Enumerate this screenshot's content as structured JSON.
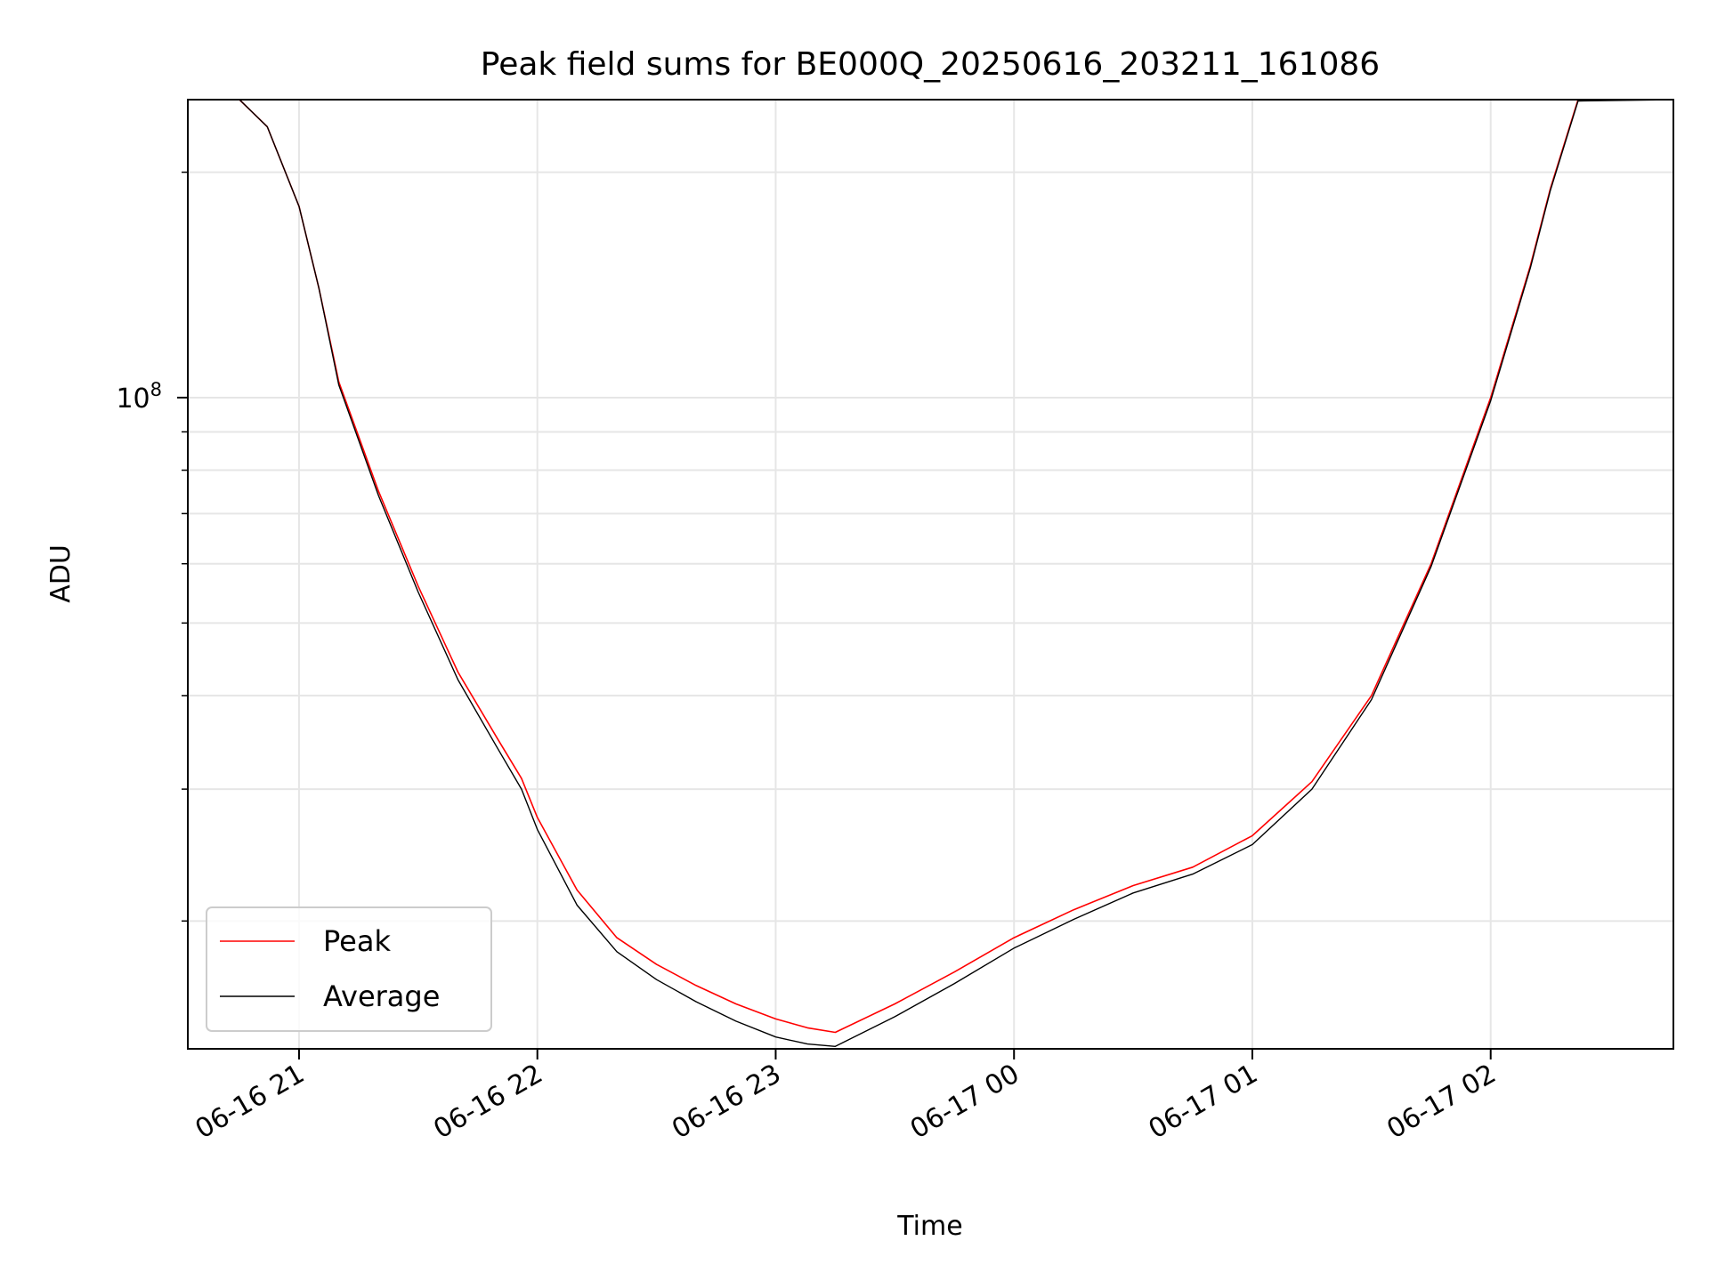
{
  "chart_data": {
    "type": "line",
    "title": "Peak field sums for BE000Q_20250616_203211_161086",
    "xlabel": "Time",
    "ylabel": "ADU",
    "yscale": "log",
    "grid": true,
    "legend_position": "lower-left",
    "xlim": [
      "2025-06-16 20:32",
      "2025-06-17 02:46"
    ],
    "ylim": [
      13500000,
      250000000
    ],
    "x_ticks": [
      {
        "value": "2025-06-16 21:00",
        "label": "06-16 21"
      },
      {
        "value": "2025-06-16 22:00",
        "label": "06-16 22"
      },
      {
        "value": "2025-06-16 23:00",
        "label": "06-16 23"
      },
      {
        "value": "2025-06-17 00:00",
        "label": "06-17 00"
      },
      {
        "value": "2025-06-17 01:00",
        "label": "06-17 01"
      },
      {
        "value": "2025-06-17 02:00",
        "label": "06-17 02"
      }
    ],
    "y_ticks": [
      {
        "value": 100000000,
        "base": "10",
        "exp": "8"
      }
    ],
    "y_minor_ticks": [
      20000000,
      30000000,
      40000000,
      50000000,
      60000000,
      70000000,
      80000000,
      90000000,
      200000000
    ],
    "series": [
      {
        "name": "Peak",
        "color": "#ff0000",
        "x": [
          "2025-06-16 20:32",
          "2025-06-16 20:45",
          "2025-06-16 20:52",
          "2025-06-16 21:00",
          "2025-06-16 21:05",
          "2025-06-16 21:10",
          "2025-06-16 21:20",
          "2025-06-16 21:30",
          "2025-06-16 21:40",
          "2025-06-16 21:50",
          "2025-06-16 21:56",
          "2025-06-16 22:00",
          "2025-06-16 22:10",
          "2025-06-16 22:20",
          "2025-06-16 22:30",
          "2025-06-16 22:40",
          "2025-06-16 22:50",
          "2025-06-16 23:00",
          "2025-06-16 23:08",
          "2025-06-16 23:15",
          "2025-06-16 23:30",
          "2025-06-16 23:45",
          "2025-06-17 00:00",
          "2025-06-17 00:15",
          "2025-06-17 00:30",
          "2025-06-17 00:45",
          "2025-06-17 01:00",
          "2025-06-17 01:15",
          "2025-06-17 01:30",
          "2025-06-17 01:45",
          "2025-06-17 02:00",
          "2025-06-17 02:10",
          "2025-06-17 02:15",
          "2025-06-17 02:22",
          "2025-06-17 02:46"
        ],
        "values": [
          250000000,
          250000000,
          230000000,
          180000000,
          140000000,
          105000000,
          75000000,
          56000000,
          43000000,
          35000000,
          31000000,
          27500000,
          22000000,
          19000000,
          17500000,
          16400000,
          15500000,
          14800000,
          14400000,
          14200000,
          15500000,
          17100000,
          19000000,
          20700000,
          22300000,
          23600000,
          26000000,
          30700000,
          40000000,
          60000000,
          100000000,
          150000000,
          190000000,
          250000000,
          250000000
        ]
      },
      {
        "name": "Average",
        "color": "#000000",
        "x": [
          "2025-06-16 20:32",
          "2025-06-16 20:45",
          "2025-06-16 20:52",
          "2025-06-16 21:00",
          "2025-06-16 21:05",
          "2025-06-16 21:10",
          "2025-06-16 21:20",
          "2025-06-16 21:30",
          "2025-06-16 21:40",
          "2025-06-16 21:50",
          "2025-06-16 21:56",
          "2025-06-16 22:00",
          "2025-06-16 22:10",
          "2025-06-16 22:20",
          "2025-06-16 22:30",
          "2025-06-16 22:40",
          "2025-06-16 22:50",
          "2025-06-16 23:00",
          "2025-06-16 23:08",
          "2025-06-16 23:15",
          "2025-06-16 23:30",
          "2025-06-16 23:45",
          "2025-06-17 00:00",
          "2025-06-17 00:15",
          "2025-06-17 00:30",
          "2025-06-17 00:45",
          "2025-06-17 01:00",
          "2025-06-17 01:15",
          "2025-06-17 01:30",
          "2025-06-17 01:45",
          "2025-06-17 02:00",
          "2025-06-17 02:10",
          "2025-06-17 02:15",
          "2025-06-17 02:22",
          "2025-06-17 02:46"
        ],
        "values": [
          250000000,
          250000000,
          230000000,
          180000000,
          140000000,
          104000000,
          74000000,
          55000000,
          42000000,
          34000000,
          30000000,
          26500000,
          21000000,
          18200000,
          16700000,
          15600000,
          14700000,
          14000000,
          13700000,
          13600000,
          14900000,
          16500000,
          18400000,
          20100000,
          21800000,
          23100000,
          25300000,
          30000000,
          39500000,
          59500000,
          99000000,
          149000000,
          189000000,
          249000000,
          250000000
        ]
      }
    ],
    "legend": {
      "entries": [
        {
          "label": "Peak",
          "color": "#ff0000"
        },
        {
          "label": "Average",
          "color": "#000000"
        }
      ]
    }
  }
}
